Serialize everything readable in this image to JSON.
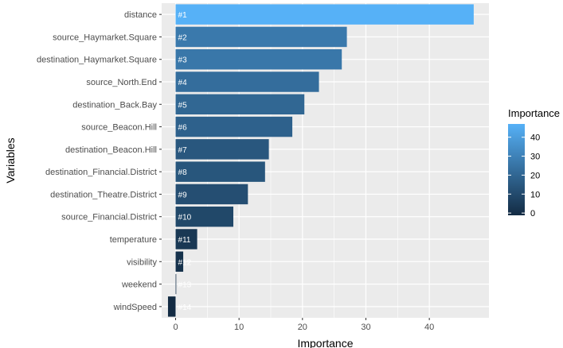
{
  "chart_data": {
    "type": "bar",
    "orientation": "horizontal",
    "xlabel": "Importance",
    "ylabel": "Variables",
    "xlim": [
      -2.2,
      49.4
    ],
    "xticks": [
      0,
      10,
      20,
      30,
      40
    ],
    "grid": true,
    "categories": [
      "distance",
      "source_Haymarket.Square",
      "destination_Haymarket.Square",
      "source_North.End",
      "destination_Back.Bay",
      "source_Beacon.Hill",
      "destination_Beacon.Hill",
      "destination_Financial.District",
      "destination_Theatre.District",
      "source_Financial.District",
      "temperature",
      "visibility",
      "weekend",
      "windSpeed"
    ],
    "values": [
      47.0,
      27.0,
      26.2,
      22.6,
      20.3,
      18.4,
      14.7,
      14.1,
      11.4,
      9.1,
      3.4,
      1.2,
      0.1,
      -1.2
    ],
    "bar_labels": [
      "#1",
      "#2",
      "#3",
      "#4",
      "#5",
      "#6",
      "#7",
      "#8",
      "#9",
      "#10",
      "#11",
      "#12",
      "#13",
      "#14"
    ],
    "legend": {
      "title": "Importance",
      "position": "right",
      "ticks": [
        0,
        10,
        20,
        30,
        40
      ],
      "range": [
        -1.2,
        47.0
      ],
      "color_low": "#132b43",
      "color_high": "#56b1f7"
    }
  }
}
